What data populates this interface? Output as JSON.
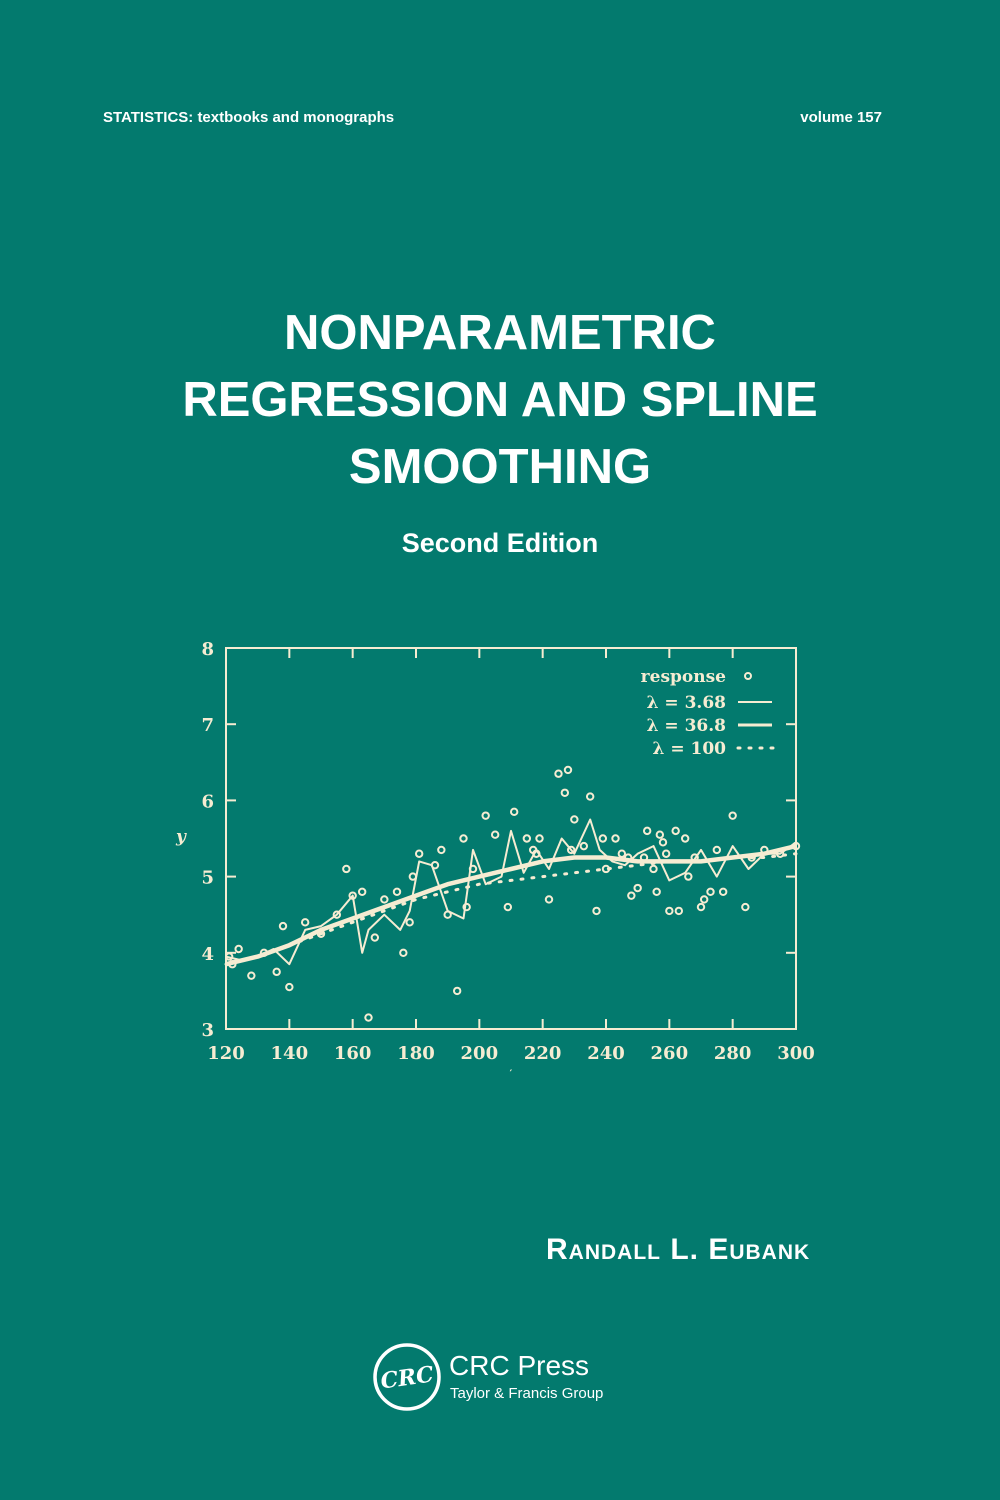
{
  "cover": {
    "series": "STATISTICS:  textbooks and monographs",
    "volume": "volume 157",
    "title_lines": [
      "NONPARAMETRIC",
      "REGRESSION AND SPLINE",
      "SMOOTHING"
    ],
    "edition": "Second Edition",
    "author": "Randall L. Eubank",
    "publisher": {
      "logo_text": "CRC",
      "name": "CRC Press",
      "group": "Taylor & Francis Group"
    },
    "colors": {
      "background": "#037a6e",
      "text": "#ffffff",
      "plot_ink": "#f6ecd2"
    }
  },
  "chart_data": {
    "type": "scatter",
    "title": "",
    "xlabel": "t",
    "ylabel": "y",
    "xlim": [
      120,
      300
    ],
    "ylim": [
      3,
      8
    ],
    "xticks": [
      "120",
      "140",
      "160",
      "180",
      "200",
      "220",
      "240",
      "260",
      "280",
      "300"
    ],
    "yticks": [
      "3",
      "4",
      "5",
      "6",
      "7",
      "8"
    ],
    "grid": false,
    "legend_position": "upper right inside",
    "legend": [
      {
        "label": "response",
        "marker": "circle"
      },
      {
        "label": "λ = 3.68",
        "style": "thin solid line"
      },
      {
        "label": "λ = 36.8",
        "style": "thick solid line"
      },
      {
        "label": "λ = 100",
        "style": "dotted line"
      }
    ],
    "series": [
      {
        "name": "response",
        "x": [
          121,
          122,
          124,
          128,
          132,
          136,
          138,
          140,
          145,
          150,
          155,
          158,
          160,
          163,
          165,
          167,
          170,
          174,
          176,
          178,
          179,
          181,
          186,
          188,
          190,
          193,
          195,
          196,
          198,
          202,
          205,
          209,
          211,
          215,
          217,
          218,
          219,
          222,
          225,
          227,
          228,
          229,
          230,
          233,
          235,
          237,
          239,
          240,
          243,
          245,
          247,
          248,
          250,
          252,
          253,
          255,
          256,
          257,
          258,
          259,
          260,
          262,
          263,
          265,
          266,
          268,
          270,
          271,
          273,
          275,
          277,
          280,
          284,
          286,
          290,
          295,
          300
        ],
        "y": [
          3.95,
          3.85,
          4.05,
          3.7,
          4.0,
          3.75,
          4.35,
          3.55,
          4.4,
          4.25,
          4.5,
          5.1,
          4.75,
          4.8,
          3.15,
          4.2,
          4.7,
          4.8,
          4.0,
          4.4,
          5.0,
          5.3,
          5.15,
          5.35,
          4.5,
          3.5,
          5.5,
          4.6,
          5.1,
          5.8,
          5.55,
          4.6,
          5.85,
          5.5,
          5.35,
          5.3,
          5.5,
          4.7,
          6.35,
          6.1,
          6.4,
          5.35,
          5.75,
          5.4,
          6.05,
          4.55,
          5.5,
          5.1,
          5.5,
          5.3,
          5.25,
          4.75,
          4.85,
          5.25,
          5.6,
          5.1,
          4.8,
          5.55,
          5.45,
          5.3,
          4.55,
          5.6,
          4.55,
          5.5,
          5.0,
          5.25,
          4.6,
          4.7,
          4.8,
          5.35,
          4.8,
          5.8,
          4.6,
          5.25,
          5.35,
          5.3,
          5.4
        ]
      },
      {
        "name": "λ = 3.68",
        "x": [
          120,
          125,
          130,
          135,
          140,
          145,
          150,
          155,
          160,
          163,
          165,
          170,
          175,
          178,
          181,
          185,
          190,
          195,
          198,
          202,
          207,
          210,
          214,
          218,
          222,
          226,
          230,
          235,
          238,
          242,
          246,
          250,
          255,
          260,
          265,
          270,
          275,
          280,
          285,
          290,
          295,
          300
        ],
        "y": [
          3.95,
          3.9,
          3.95,
          4.05,
          3.85,
          4.3,
          4.35,
          4.5,
          4.75,
          4.0,
          4.3,
          4.5,
          4.3,
          4.55,
          5.2,
          5.15,
          4.55,
          4.45,
          5.35,
          4.9,
          5.0,
          5.6,
          5.05,
          5.35,
          5.1,
          5.5,
          5.3,
          5.75,
          5.35,
          5.2,
          5.15,
          5.3,
          5.4,
          4.95,
          5.05,
          5.35,
          5.0,
          5.4,
          5.1,
          5.3,
          5.3,
          5.45
        ]
      },
      {
        "name": "λ = 36.8",
        "x": [
          120,
          130,
          140,
          150,
          160,
          170,
          180,
          190,
          200,
          210,
          220,
          230,
          240,
          250,
          260,
          270,
          280,
          290,
          300
        ],
        "y": [
          3.85,
          3.95,
          4.1,
          4.3,
          4.45,
          4.6,
          4.75,
          4.9,
          5.0,
          5.1,
          5.2,
          5.25,
          5.25,
          5.2,
          5.2,
          5.2,
          5.25,
          5.3,
          5.4
        ]
      },
      {
        "name": "λ = 100",
        "x": [
          120,
          130,
          140,
          150,
          160,
          170,
          180,
          190,
          200,
          210,
          220,
          230,
          240,
          250,
          260,
          270,
          280,
          290,
          300
        ],
        "y": [
          3.85,
          3.95,
          4.1,
          4.25,
          4.4,
          4.55,
          4.7,
          4.8,
          4.9,
          4.95,
          5.0,
          5.05,
          5.1,
          5.15,
          5.2,
          5.2,
          5.25,
          5.25,
          5.3
        ]
      }
    ]
  }
}
